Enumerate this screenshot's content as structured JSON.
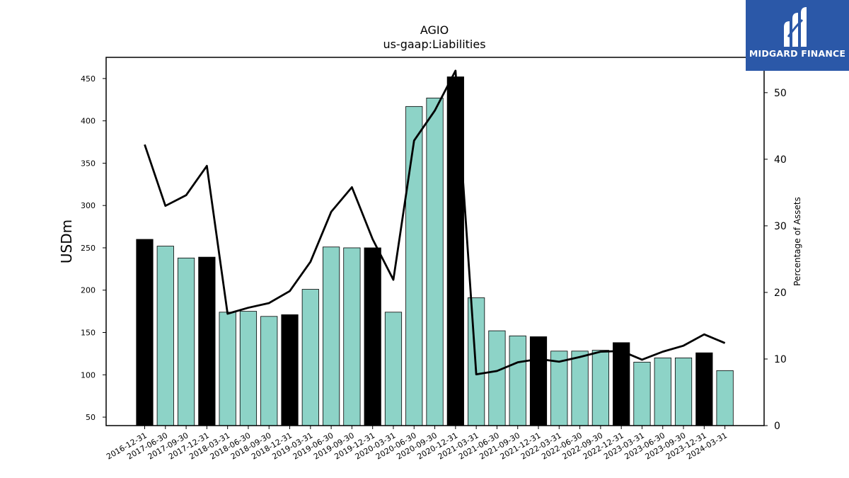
{
  "chart_data": {
    "type": "bar",
    "title": "AGIO",
    "subtitle": "us-gaap:Liabilities",
    "ylabel": "USDm",
    "y2label": "Percentage of Assets",
    "ylim": [
      40,
      475
    ],
    "y2lim": [
      0,
      55.3
    ],
    "yticks": [
      50,
      100,
      150,
      200,
      250,
      300,
      350,
      400,
      450
    ],
    "y2ticks": [
      0,
      10,
      20,
      30,
      40,
      50
    ],
    "categories": [
      "2016-12-31",
      "2017-06-30",
      "2017-09-30",
      "2017-12-31",
      "2018-03-31",
      "2018-06-30",
      "2018-09-30",
      "2018-12-31",
      "2019-03-31",
      "2019-06-30",
      "2019-09-30",
      "2019-12-31",
      "2020-03-31",
      "2020-06-30",
      "2020-09-30",
      "2020-12-31",
      "2021-03-31",
      "2021-06-30",
      "2021-09-30",
      "2021-12-31",
      "2022-03-31",
      "2022-06-30",
      "2022-09-30",
      "2022-12-31",
      "2023-03-31",
      "2023-06-30",
      "2023-09-30",
      "2023-12-31",
      "2024-03-31"
    ],
    "series": [
      {
        "type": "bar",
        "values": [
          260,
          252,
          238,
          239,
          174,
          175,
          169,
          171,
          201,
          251,
          250,
          250,
          174,
          417,
          427,
          452,
          191,
          152,
          146,
          145,
          128,
          128,
          129,
          138,
          115,
          120,
          120,
          126,
          105
        ],
        "year_end": [
          true,
          false,
          false,
          true,
          false,
          false,
          false,
          true,
          false,
          false,
          false,
          true,
          false,
          false,
          false,
          true,
          false,
          false,
          false,
          true,
          false,
          false,
          false,
          true,
          false,
          false,
          false,
          true,
          false
        ],
        "colors": {
          "year_end": "#000000",
          "quarter": "#8dd3c7"
        }
      },
      {
        "type": "line",
        "axis": "right",
        "values": [
          42.2,
          33.0,
          34.6,
          39.0,
          16.8,
          17.7,
          18.4,
          20.2,
          24.6,
          32.1,
          35.8,
          28.0,
          21.9,
          42.8,
          47.3,
          53.3,
          7.7,
          8.2,
          9.5,
          10.0,
          9.6,
          10.3,
          11.1,
          11.2,
          9.9,
          11.1,
          12.0,
          13.7,
          12.4
        ],
        "color": "#000000"
      }
    ]
  },
  "logo": {
    "text": "MIDGARD FINANCE",
    "color": "#2b58a8"
  }
}
